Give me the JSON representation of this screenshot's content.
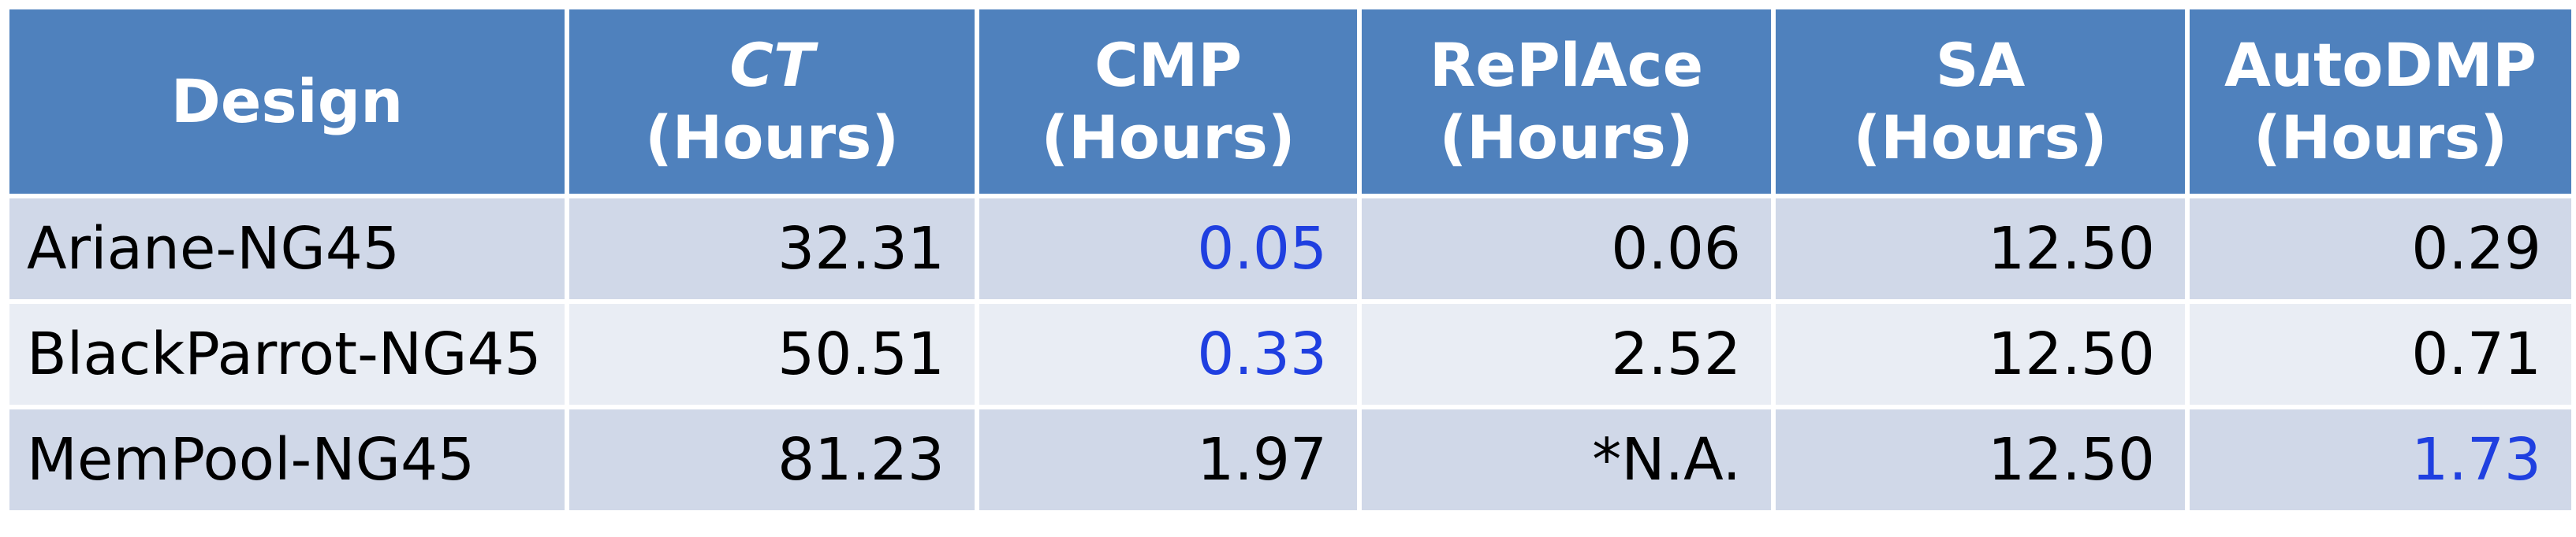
{
  "table": {
    "headers": [
      {
        "line1": "Design",
        "line2": "",
        "italic_line1": false
      },
      {
        "line1": "CT",
        "line2": "(Hours)",
        "italic_line1": true
      },
      {
        "line1": "CMP",
        "line2": "(Hours)",
        "italic_line1": false
      },
      {
        "line1": "RePlAce",
        "line2": "(Hours)",
        "italic_line1": false
      },
      {
        "line1": "SA",
        "line2": "(Hours)",
        "italic_line1": false
      },
      {
        "line1": "AutoDMP",
        "line2": "(Hours)",
        "italic_line1": false
      }
    ],
    "rows": [
      {
        "design": "Ariane-NG45",
        "ct": "32.31",
        "cmp": "0.05",
        "replace": "0.06",
        "sa": "12.50",
        "autodmp": "0.29",
        "best_column": "cmp"
      },
      {
        "design": "BlackParrot-NG45",
        "ct": "50.51",
        "cmp": "0.33",
        "replace": "2.52",
        "sa": "12.50",
        "autodmp": "0.71",
        "best_column": "cmp"
      },
      {
        "design": "MemPool-NG45",
        "ct": "81.23",
        "cmp": "1.97",
        "replace": "*N.A.",
        "sa": "12.50",
        "autodmp": "1.73",
        "best_column": "autodmp"
      }
    ],
    "colors": {
      "header_bg": "#4f81bd",
      "header_text": "#ffffff",
      "row_odd_bg": "#d0d8e8",
      "row_even_bg": "#e9edf4",
      "highlight_text": "#1f3fe0"
    }
  }
}
